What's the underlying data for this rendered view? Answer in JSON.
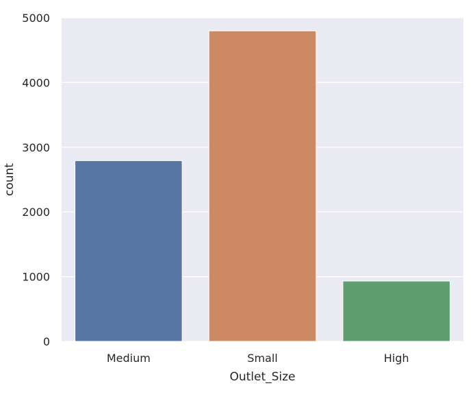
{
  "chart_data": {
    "type": "bar",
    "categories": [
      "Medium",
      "Small",
      "High"
    ],
    "values": [
      2793,
      4798,
      932
    ],
    "colors": [
      "#5875A4",
      "#CC8963",
      "#5F9E6E"
    ],
    "background": "#EAEAF2",
    "grid": true,
    "grid_color": "#FFFFFF",
    "title": "",
    "xlabel": "Outlet_Size",
    "ylabel": "count",
    "ylim": [
      0,
      5000
    ],
    "yticks": [
      0,
      1000,
      2000,
      3000,
      4000,
      5000
    ],
    "ytick_labels": [
      "0",
      "1000",
      "2000",
      "3000",
      "4000",
      "5000"
    ]
  }
}
